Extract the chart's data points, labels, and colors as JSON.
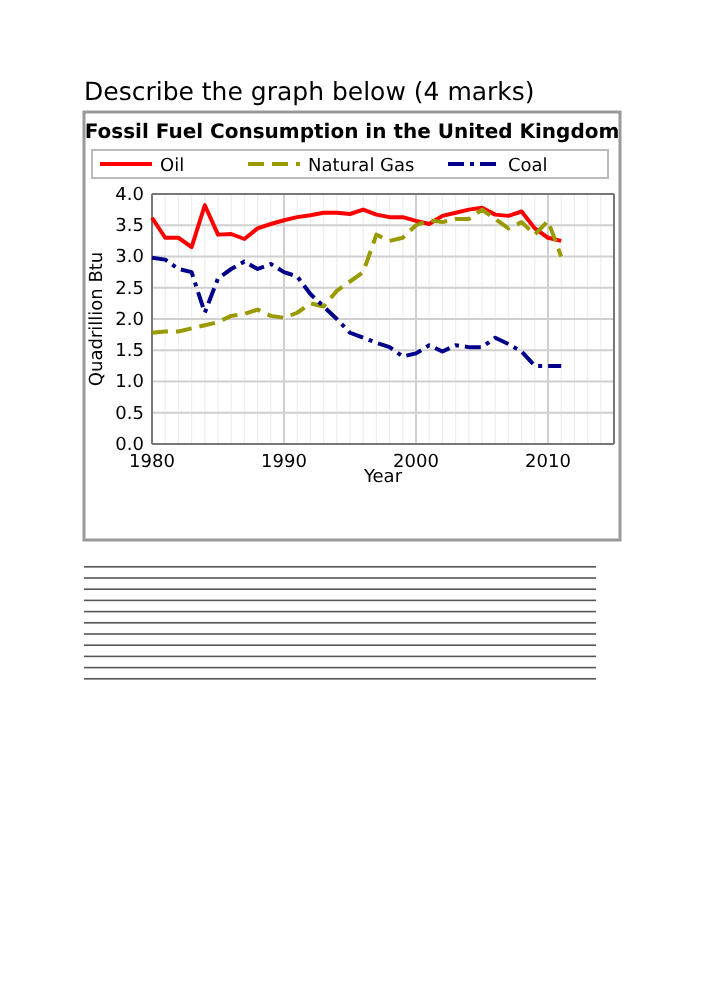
{
  "chart_data": {
    "type": "line",
    "title": "Fossil Fuel Consumption in the United Kingdom",
    "xlabel": "Year",
    "ylabel": "Quadrillion Btu",
    "annotations": [
      "Describe the graph below (4 marks)"
    ],
    "x": [
      1980,
      1981,
      1982,
      1983,
      1984,
      1985,
      1986,
      1987,
      1988,
      1989,
      1990,
      1991,
      1992,
      1993,
      1994,
      1995,
      1996,
      1997,
      1998,
      1999,
      2000,
      2001,
      2002,
      2003,
      2004,
      2005,
      2006,
      2007,
      2008,
      2009,
      2010,
      2011
    ],
    "series": [
      {
        "name": "Oil",
        "color": "#ff0000",
        "line_style": "solid",
        "values": [
          3.62,
          3.3,
          3.3,
          3.15,
          3.82,
          3.35,
          3.36,
          3.28,
          3.45,
          3.52,
          3.58,
          3.63,
          3.66,
          3.7,
          3.7,
          3.68,
          3.75,
          3.67,
          3.63,
          3.63,
          3.57,
          3.52,
          3.65,
          3.7,
          3.75,
          3.78,
          3.67,
          3.65,
          3.72,
          3.45,
          3.3,
          3.25
        ]
      },
      {
        "name": "Natural Gas",
        "color": "#999900",
        "line_style": "dashed",
        "values": [
          1.78,
          1.8,
          1.8,
          1.85,
          1.9,
          1.95,
          2.05,
          2.08,
          2.15,
          2.05,
          2.02,
          2.1,
          2.25,
          2.2,
          2.45,
          2.6,
          2.75,
          3.35,
          3.25,
          3.3,
          3.5,
          3.58,
          3.55,
          3.6,
          3.6,
          3.75,
          3.6,
          3.45,
          3.55,
          3.35,
          3.57,
          3.0
        ]
      },
      {
        "name": "Coal",
        "color": "#00008b",
        "line_style": "dashdot",
        "values": [
          2.98,
          2.95,
          2.8,
          2.75,
          2.1,
          2.65,
          2.8,
          2.92,
          2.8,
          2.88,
          2.75,
          2.68,
          2.4,
          2.2,
          2.0,
          1.78,
          1.7,
          1.62,
          1.55,
          1.4,
          1.45,
          1.58,
          1.48,
          1.58,
          1.55,
          1.55,
          1.7,
          1.6,
          1.48,
          1.25,
          1.25,
          1.25
        ]
      }
    ],
    "xlim": [
      1980,
      2015
    ],
    "xticks": [
      1980,
      1990,
      2000,
      2010
    ],
    "ylim": [
      0,
      4
    ],
    "yticks": [
      {
        "value": 0,
        "label": "0.0"
      },
      0.5,
      {
        "value": 1,
        "label": "1.0"
      },
      1.5,
      {
        "value": 2,
        "label": "2.0"
      },
      2.5,
      {
        "value": 3,
        "label": "3.0"
      },
      3.5,
      {
        "value": 4,
        "label": "4.0"
      }
    ],
    "grid": true,
    "legend": "top",
    "marker": "none"
  }
}
